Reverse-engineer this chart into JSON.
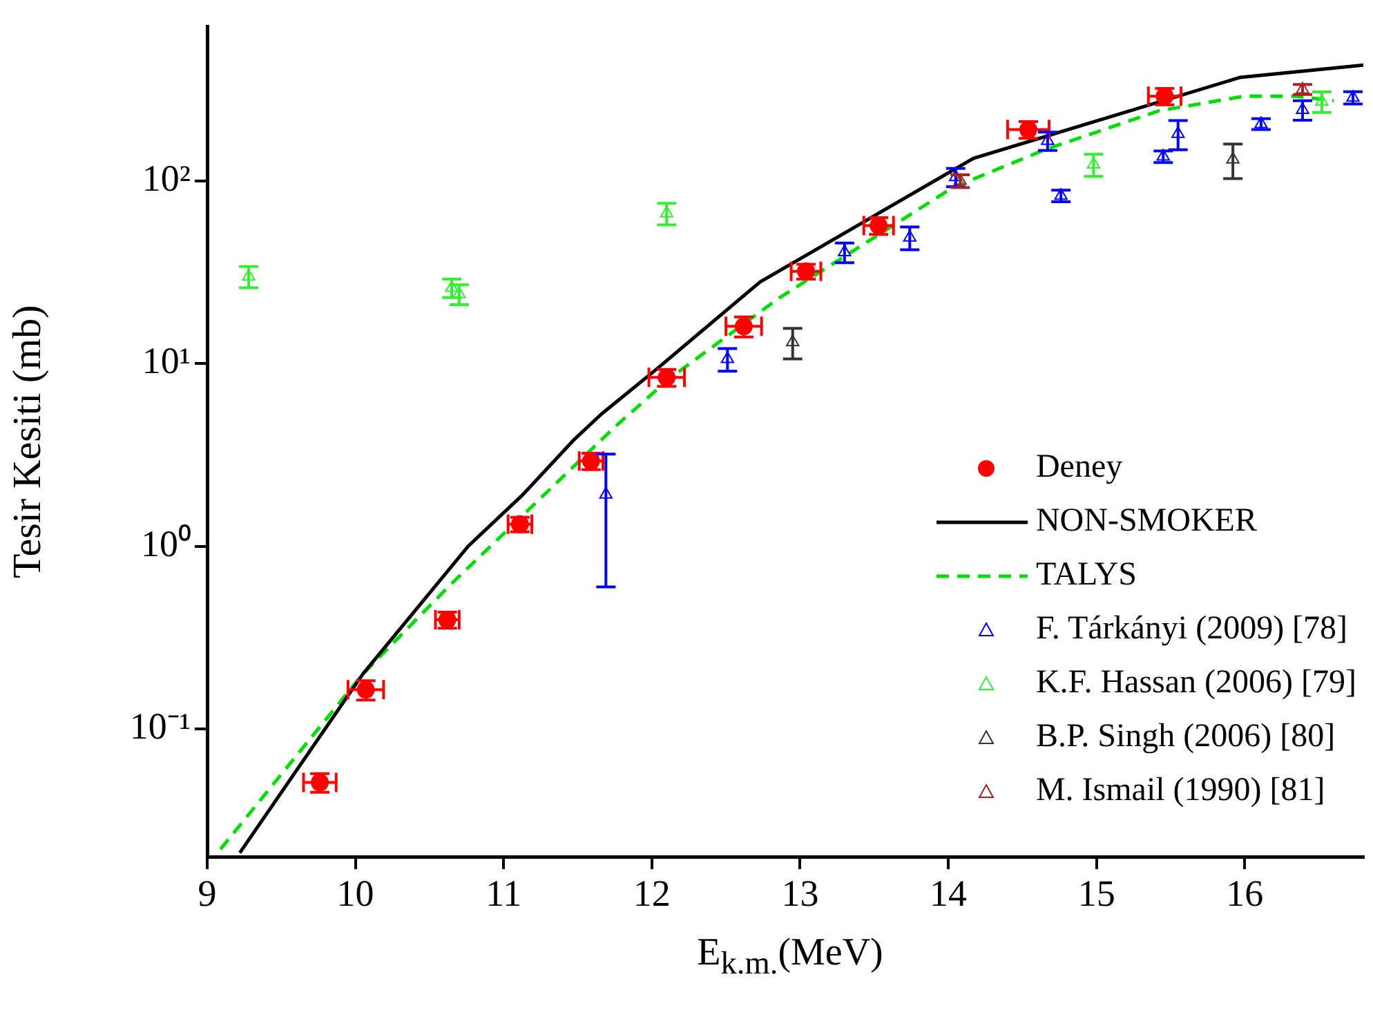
{
  "chart_data": {
    "type": "scatter",
    "xlabel": "E$_{k.m.}$(MeV)",
    "ylabel": "Tesir Kesiti (mb)",
    "log": "y",
    "xlim": [
      9,
      16.8
    ],
    "xticks": [
      9,
      10,
      11,
      12,
      13,
      14,
      15,
      16
    ],
    "ylim": [
      0.02,
      700
    ],
    "yticks": [
      {
        "value": 0.1,
        "label": "10⁻¹"
      },
      {
        "value": 1,
        "label": "10⁰"
      },
      {
        "value": 10,
        "label": "10¹"
      },
      {
        "value": 100,
        "label": "10²"
      }
    ],
    "legend": "bottom right",
    "series": [
      {
        "name": "Deney",
        "marker": "circle",
        "color": "#ff0000",
        "x": [
          9.76,
          10.07,
          10.62,
          11.11,
          11.59,
          12.1,
          12.62,
          13.04,
          13.53,
          14.54,
          15.46
        ],
        "values": [
          0.051,
          0.164,
          0.396,
          1.32,
          2.93,
          8.4,
          16.0,
          32,
          57,
          191,
          291
        ],
        "errors": [
          0.006,
          0.02,
          0.04,
          0.12,
          0.3,
          0.9,
          2,
          3,
          6,
          20,
          30
        ],
        "xerrors": [
          0.11,
          0.12,
          0.08,
          0.08,
          0.08,
          0.12,
          0.12,
          0.1,
          0.1,
          0.14,
          0.11
        ]
      },
      {
        "name": "NON-SMOKER",
        "type": "line",
        "marker": "none",
        "line_style": "solid",
        "color": "#000000",
        "x": [
          9.22,
          10.05,
          10.76,
          11.13,
          11.47,
          11.66,
          12.03,
          12.73,
          14.17,
          15.97,
          16.8
        ],
        "values": [
          0.021,
          0.2,
          1.0,
          1.92,
          3.8,
          5.3,
          9.3,
          28,
          133,
          369,
          430
        ]
      },
      {
        "name": "TALYS",
        "type": "line",
        "marker": "none",
        "line_style": "dashed",
        "color": "#00dd00",
        "x": [
          9.09,
          10.05,
          10.64,
          11.75,
          12.12,
          12.86,
          14.03,
          14.65,
          15.42,
          16.0,
          16.34,
          16.6
        ],
        "values": [
          0.022,
          0.2,
          0.615,
          4.5,
          8.3,
          22.9,
          92,
          148,
          242,
          291,
          291,
          275
        ]
      },
      {
        "name": "F. Tárkányi (2009) [78]",
        "marker": "triangle",
        "color": "#0000ff",
        "x": [
          11.69,
          12.51,
          13.3,
          13.74,
          14.05,
          14.67,
          14.76,
          15.45,
          15.55,
          16.11,
          16.39,
          16.73
        ],
        "values": [
          1.92,
          10.6,
          40.7,
          49,
          105,
          166,
          83,
          136,
          181,
          205,
          245,
          286
        ],
        "errors": [
          [
            0.6,
            3.2
          ],
          1.5,
          5,
          7,
          12,
          19,
          6,
          10,
          33,
          14,
          30,
          22
        ]
      },
      {
        "name": "K.F. Hassan (2006) [79]",
        "marker": "triangle",
        "color": "#33ee33",
        "x": [
          9.28,
          10.65,
          10.7,
          12.1,
          14.98,
          16.52
        ],
        "values": [
          30,
          26,
          24,
          66.5,
          123,
          272
        ],
        "errors": [
          4,
          3,
          3,
          9,
          17,
          35
        ]
      },
      {
        "name": "B.P. Singh (2006) [80]",
        "marker": "triangle",
        "color": "#333333",
        "x": [
          12.95,
          15.92
        ],
        "values": [
          13.1,
          131
        ],
        "errors": [
          2.5,
          28
        ]
      },
      {
        "name": "M. Ismail (1990) [81]",
        "marker": "triangle",
        "color": "#aa2222",
        "x": [
          14.08,
          16.39
        ],
        "values": [
          100,
          317
        ],
        "errors": [
          8,
          20
        ]
      }
    ]
  }
}
